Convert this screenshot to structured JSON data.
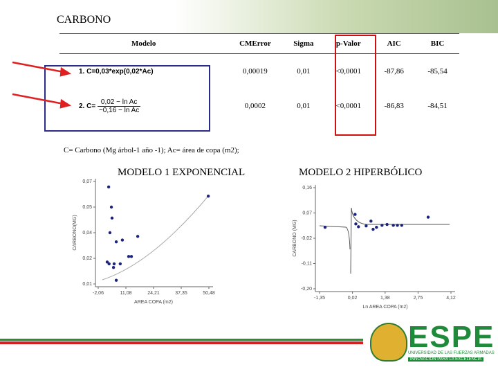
{
  "title": "CARBONO",
  "table": {
    "header": [
      "Modelo",
      "CMError",
      "Sigma",
      "p-Valor",
      "AIC",
      "BIC"
    ],
    "rows": [
      [
        "1. C=0,03*exp(0,02*Ac)",
        "0,00019",
        "0,01",
        "<0,0001",
        "-87,86",
        "-85,54"
      ],
      [
        "2. C=",
        "0,0002",
        "0,01",
        "<0,0001",
        "-86,83",
        "-84,51"
      ]
    ],
    "fraction": {
      "numerator": "0,02 − ln Ac",
      "denominator": "−0,16 − ln Ac"
    }
  },
  "footnote": "C= Carbono (Mg árbol-1 año -1); Ac= área de copa (m2);",
  "logo": {
    "name": "ESPE",
    "line1": "UNIVERSIDAD DE LAS FUERZAS ARMADAS",
    "line2": "INNOVACIÓN PARA LA EXCELENCIA"
  },
  "charts": [
    {
      "type": "scatter",
      "title": "MODELO 1 EXPONENCIAL",
      "xlabel": "AREA COPA (m2)",
      "ylabel": "CARBONO(MG)",
      "color": "#1a237e",
      "xlim": [
        -2.06,
        50.48
      ],
      "ylim": [
        0.01,
        0.066
      ],
      "xticks": [
        {
          "value": -2.06,
          "label": "-2,06"
        },
        {
          "value": 11.08,
          "label": "11,08"
        },
        {
          "value": 24.21,
          "label": "24,21"
        },
        {
          "value": 37.35,
          "label": "37,35"
        },
        {
          "value": 50.48,
          "label": "50,48"
        }
      ],
      "yticks": [
        {
          "value": 0.01,
          "label": "0,01"
        },
        {
          "value": 0.024,
          "label": "0,02"
        },
        {
          "value": 0.038,
          "label": "0,04"
        },
        {
          "value": 0.052,
          "label": "0,05"
        },
        {
          "value": 0.066,
          "label": "0,07"
        }
      ],
      "x": [
        2.9,
        4.2,
        4.5,
        3.5,
        6.5,
        9.4,
        16.7,
        2.2,
        3.1,
        5.5,
        8.4,
        12.4,
        13.7,
        5.2,
        6.5,
        50.2
      ],
      "y": [
        0.063,
        0.052,
        0.046,
        0.038,
        0.033,
        0.034,
        0.036,
        0.022,
        0.021,
        0.021,
        0.021,
        0.025,
        0.025,
        0.019,
        0.012,
        0.058
      ]
    },
    {
      "type": "scatter",
      "title": "MODELO 2 HIPERBÓLICO",
      "xlabel": "Ln AREA COPA (m2)",
      "ylabel": "CARBONO (MG)",
      "color": "#1a237e",
      "xlim": [
        -1.35,
        4.12
      ],
      "ylim": [
        -0.2,
        0.16
      ],
      "xticks": [
        {
          "value": -1.35,
          "label": "-1,35"
        },
        {
          "value": 0.02,
          "label": "0,02"
        },
        {
          "value": 1.38,
          "label": "1,38"
        },
        {
          "value": 2.75,
          "label": "2,75"
        },
        {
          "value": 4.12,
          "label": "4,12"
        }
      ],
      "yticks": [
        {
          "value": -0.2,
          "label": "-0,20"
        },
        {
          "value": -0.11,
          "label": "-0,11"
        },
        {
          "value": -0.02,
          "label": "-0,02"
        },
        {
          "value": 0.07,
          "label": "0,07"
        },
        {
          "value": 0.16,
          "label": "0,16"
        }
      ],
      "x": [
        -1.12,
        0.13,
        0.16,
        0.27,
        0.59,
        0.79,
        0.88,
        1.02,
        1.25,
        1.46,
        1.72,
        1.89,
        2.07,
        3.17
      ],
      "y": [
        0.019,
        0.065,
        0.031,
        0.021,
        0.024,
        0.041,
        0.012,
        0.019,
        0.026,
        0.029,
        0.026,
        0.026,
        0.026,
        0.055
      ]
    }
  ]
}
